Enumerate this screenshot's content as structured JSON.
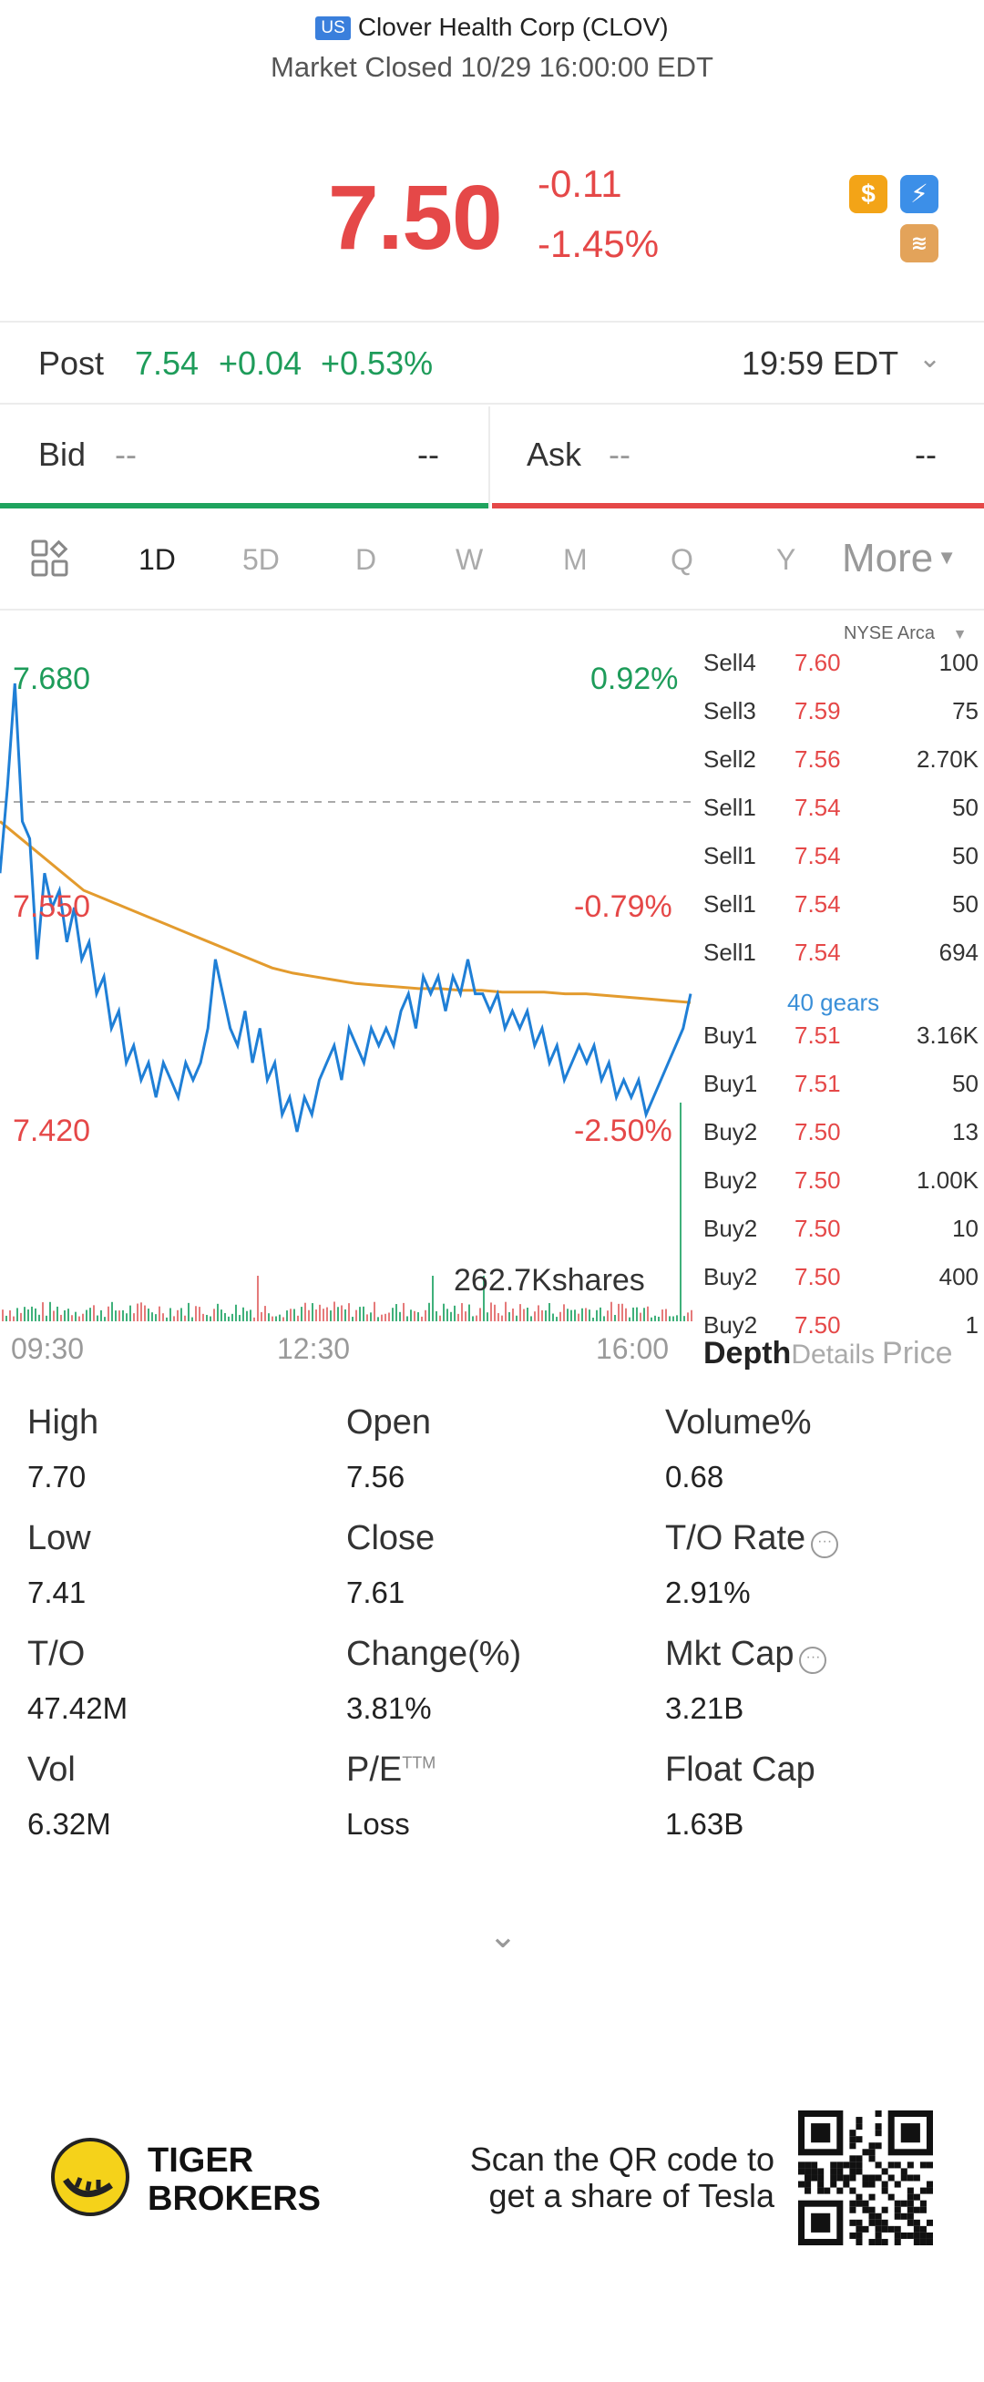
{
  "header": {
    "market": "US",
    "title": "Clover Health Corp (CLOV)",
    "status": "Market Closed 10/29 16:00:00 EDT",
    "price": "7.50",
    "change": "-0.11",
    "change_pct": "-1.45%",
    "badges": [
      "dollar-icon",
      "flash-icon",
      "stack-icon"
    ]
  },
  "post": {
    "label": "Post",
    "price": "7.54",
    "change": "+0.04",
    "change_pct": "+0.53%",
    "time": "19:59 EDT"
  },
  "bidask": {
    "bid_label": "Bid",
    "bid_price": "--",
    "bid_qty": "--",
    "ask_label": "Ask",
    "ask_price": "--",
    "ask_qty": "--"
  },
  "periods": [
    "1D",
    "5D",
    "D",
    "W",
    "M",
    "Q",
    "Y"
  ],
  "more_label": "More",
  "chart": {
    "exchange": "NYSE Arca",
    "high_label": "7.680",
    "high_pct": "0.92%",
    "mid_label": "7.550",
    "mid_pct": "-0.79%",
    "low_label": "7.420",
    "low_pct": "-2.50%",
    "volume_label": "262.7Kshares",
    "time_labels": [
      "09:30",
      "12:30",
      "16:00"
    ]
  },
  "chart_data": {
    "type": "line",
    "title": "",
    "ylim": [
      7.42,
      7.68
    ],
    "prev_close": 7.61,
    "x_range": [
      "09:30",
      "16:00"
    ],
    "series": [
      {
        "values": [
          7.57,
          7.62,
          7.68,
          7.6,
          7.59,
          7.52,
          7.57,
          7.55,
          7.56,
          7.53,
          7.55,
          7.52,
          7.53,
          7.5,
          7.51,
          7.48,
          7.49,
          7.46,
          7.47,
          7.45,
          7.46,
          7.44,
          7.46,
          7.45,
          7.44,
          7.46,
          7.45,
          7.46,
          7.48,
          7.52,
          7.5,
          7.48,
          7.47,
          7.49,
          7.46,
          7.48,
          7.45,
          7.46,
          7.43,
          7.44,
          7.42,
          7.44,
          7.43,
          7.45,
          7.46,
          7.47,
          7.45,
          7.48,
          7.47,
          7.46,
          7.48,
          7.47,
          7.48,
          7.47,
          7.49,
          7.5,
          7.48,
          7.51,
          7.5,
          7.51,
          7.49,
          7.51,
          7.5,
          7.52,
          7.5,
          7.5,
          7.49,
          7.5,
          7.48,
          7.49,
          7.48,
          7.49,
          7.47,
          7.48,
          7.46,
          7.47,
          7.45,
          7.46,
          7.47,
          7.46,
          7.47,
          7.45,
          7.46,
          7.44,
          7.45,
          7.44,
          7.45,
          7.43,
          7.44,
          7.45,
          7.46,
          7.47,
          7.48,
          7.5
        ]
      },
      {
        "values": [
          7.6,
          7.59,
          7.58,
          7.57,
          7.56,
          7.555,
          7.55,
          7.545,
          7.54,
          7.535,
          7.53,
          7.525,
          7.52,
          7.515,
          7.512,
          7.51,
          7.508,
          7.506,
          7.505,
          7.504,
          7.503,
          7.503,
          7.502,
          7.502,
          7.501,
          7.501,
          7.501,
          7.5,
          7.5,
          7.499,
          7.498,
          7.497,
          7.496,
          7.495
        ]
      }
    ],
    "volume_total": "262.7K"
  },
  "depth": [
    {
      "side": "Sell4",
      "price": "7.60",
      "qty": "100"
    },
    {
      "side": "Sell3",
      "price": "7.59",
      "qty": "75"
    },
    {
      "side": "Sell2",
      "price": "7.56",
      "qty": "2.70K"
    },
    {
      "side": "Sell1",
      "price": "7.54",
      "qty": "50"
    },
    {
      "side": "Sell1",
      "price": "7.54",
      "qty": "50"
    },
    {
      "side": "Sell1",
      "price": "7.54",
      "qty": "50"
    },
    {
      "side": "Sell1",
      "price": "7.54",
      "qty": "694"
    },
    {
      "side": "Buy1",
      "price": "7.51",
      "qty": "3.16K"
    },
    {
      "side": "Buy1",
      "price": "7.51",
      "qty": "50"
    },
    {
      "side": "Buy2",
      "price": "7.50",
      "qty": "13"
    },
    {
      "side": "Buy2",
      "price": "7.50",
      "qty": "1.00K"
    },
    {
      "side": "Buy2",
      "price": "7.50",
      "qty": "10"
    },
    {
      "side": "Buy2",
      "price": "7.50",
      "qty": "400"
    },
    {
      "side": "Buy2",
      "price": "7.50",
      "qty": "1"
    }
  ],
  "gears_label": "40 gears",
  "tabs": [
    "Depth",
    "Details",
    "Price"
  ],
  "stats": [
    {
      "label": "High",
      "value": "7.70"
    },
    {
      "label": "Open",
      "value": "7.56"
    },
    {
      "label": "Volume%",
      "value": "0.68"
    },
    {
      "label": "Low",
      "value": "7.41"
    },
    {
      "label": "Close",
      "value": "7.61"
    },
    {
      "label": "T/O Rate",
      "value": "2.91%"
    },
    {
      "label": "T/O",
      "value": "47.42M"
    },
    {
      "label": "Change(%)",
      "value": "3.81%"
    },
    {
      "label": "Mkt Cap",
      "value": "3.21B"
    },
    {
      "label": "Vol",
      "value": "6.32M"
    },
    {
      "label": "P/E",
      "value": "Loss"
    },
    {
      "label": "Float Cap",
      "value": "1.63B"
    }
  ],
  "pe_sup": "TTM",
  "footer": {
    "brand_line1": "TIGER",
    "brand_line2": "BROKERS",
    "scan_line1": "Scan the QR code to",
    "scan_line2": "get a share of Tesla"
  }
}
